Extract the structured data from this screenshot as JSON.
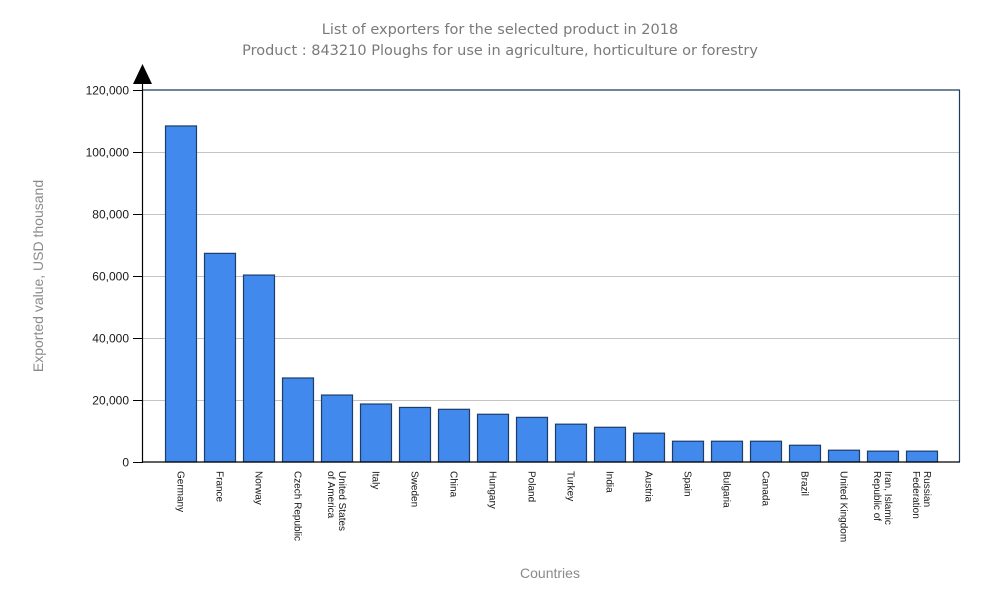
{
  "chart_data": {
    "type": "bar",
    "title": "List of exporters for the selected product in 2018",
    "subtitle": "Product : 843210 Ploughs for use in agriculture, horticulture or forestry",
    "xlabel": "Countries",
    "ylabel": "Exported value, USD thousand",
    "ylim": [
      0,
      120000
    ],
    "yticks": [
      0,
      20000,
      40000,
      60000,
      80000,
      100000,
      120000
    ],
    "yticklabels": [
      "0",
      "20,000",
      "40,000",
      "60,000",
      "80,000",
      "100,000",
      "120,000"
    ],
    "grid": true,
    "legend": "none",
    "categories": [
      "Germany",
      "France",
      "Norway",
      "Czech Republic",
      "United States of America",
      "Italy",
      "Sweden",
      "China",
      "Hungary",
      "Poland",
      "Turkey",
      "India",
      "Austria",
      "Spain",
      "Bulgaria",
      "Canada",
      "Brazil",
      "United Kingdom",
      "Iran, Islamic Republic of",
      "Russian Federation"
    ],
    "xtick_labels": [
      [
        "Germany"
      ],
      [
        "France"
      ],
      [
        "Norway"
      ],
      [
        "Czech Republic"
      ],
      [
        "United States",
        "of America"
      ],
      [
        "Italy"
      ],
      [
        "Sweden"
      ],
      [
        "China"
      ],
      [
        "Hungary"
      ],
      [
        "Poland"
      ],
      [
        "Turkey"
      ],
      [
        "India"
      ],
      [
        "Austria"
      ],
      [
        "Spain"
      ],
      [
        "Bulgaria"
      ],
      [
        "Canada"
      ],
      [
        "Brazil"
      ],
      [
        "United Kingdom"
      ],
      [
        "Iran, Islamic",
        "Republic of"
      ],
      [
        "Russian",
        "Federation"
      ]
    ],
    "series": [
      {
        "name": "Exported value 2018",
        "color": "#4189ec",
        "values": [
          108400,
          67300,
          60300,
          27100,
          21600,
          18700,
          17600,
          17000,
          15400,
          14400,
          12200,
          11200,
          9300,
          6700,
          6700,
          6700,
          5400,
          3800,
          3500,
          3500
        ]
      }
    ]
  }
}
